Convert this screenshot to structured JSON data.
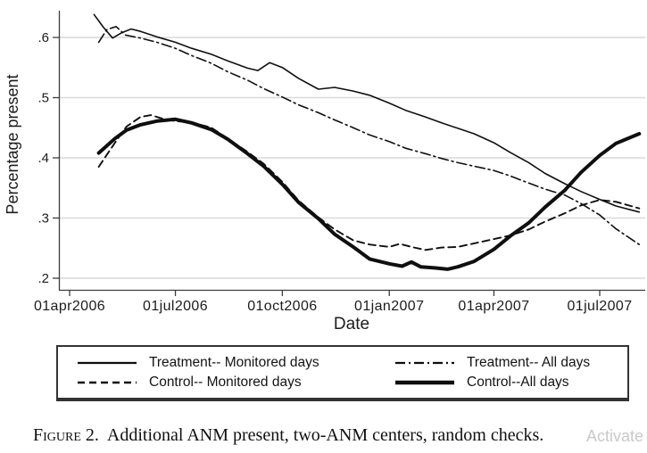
{
  "figure": {
    "caption_label": "Figure 2.",
    "caption_text": "Additional ANM present, two-ANM centers, random checks.",
    "watermark_text": "Activate"
  },
  "chart_data": {
    "type": "line",
    "title": "",
    "xlabel": "Date",
    "ylabel": "Percentage present",
    "grid": {
      "horizontal": true,
      "color": "#d9d9d9"
    },
    "line_color": "#0f0f0f",
    "legend_position": "bottom-box",
    "x_axis": {
      "min": "2006-04-01",
      "max": "2007-08-14",
      "ticks": [
        {
          "date": "2006-04-01",
          "label": "01apr2006"
        },
        {
          "date": "2006-07-01",
          "label": "01jul2006"
        },
        {
          "date": "2006-10-01",
          "label": "01oct2006"
        },
        {
          "date": "2007-01-01",
          "label": "01jan2007"
        },
        {
          "date": "2007-04-01",
          "label": "01apr2007"
        },
        {
          "date": "2007-07-01",
          "label": "01jul2007"
        }
      ]
    },
    "y_axis": {
      "min": 0.2,
      "max": 0.6,
      "ticks": [
        {
          "v": 0.6,
          "label": ".6"
        },
        {
          "v": 0.5,
          "label": ".5"
        },
        {
          "v": 0.4,
          "label": ".4"
        },
        {
          "v": 0.3,
          "label": ".3"
        },
        {
          "v": 0.2,
          "label": ".2"
        }
      ]
    },
    "series": [
      {
        "name": "Treatment-- Monitored days",
        "line_style": "solid",
        "points": [
          [
            "2006-04-22",
            0.638
          ],
          [
            "2006-04-30",
            0.617
          ],
          [
            "2006-05-08",
            0.599
          ],
          [
            "2006-05-16",
            0.608
          ],
          [
            "2006-05-24",
            0.614
          ],
          [
            "2006-06-01",
            0.61
          ],
          [
            "2006-06-15",
            0.601
          ],
          [
            "2006-07-01",
            0.592
          ],
          [
            "2006-07-15",
            0.582
          ],
          [
            "2006-08-01",
            0.572
          ],
          [
            "2006-08-15",
            0.561
          ],
          [
            "2006-09-01",
            0.549
          ],
          [
            "2006-09-10",
            0.545
          ],
          [
            "2006-09-20",
            0.558
          ],
          [
            "2006-10-01",
            0.55
          ],
          [
            "2006-10-15",
            0.532
          ],
          [
            "2006-11-01",
            0.514
          ],
          [
            "2006-11-15",
            0.517
          ],
          [
            "2006-12-01",
            0.511
          ],
          [
            "2006-12-15",
            0.504
          ],
          [
            "2007-01-01",
            0.491
          ],
          [
            "2007-01-15",
            0.479
          ],
          [
            "2007-02-01",
            0.468
          ],
          [
            "2007-02-15",
            0.458
          ],
          [
            "2007-03-01",
            0.449
          ],
          [
            "2007-03-15",
            0.44
          ],
          [
            "2007-04-01",
            0.425
          ],
          [
            "2007-04-15",
            0.409
          ],
          [
            "2007-05-01",
            0.392
          ],
          [
            "2007-05-15",
            0.374
          ],
          [
            "2007-06-01",
            0.357
          ],
          [
            "2007-06-15",
            0.344
          ],
          [
            "2007-07-01",
            0.331
          ],
          [
            "2007-07-15",
            0.32
          ],
          [
            "2007-08-04",
            0.31
          ]
        ]
      },
      {
        "name": "Treatment-- All days",
        "line_style": "dashdot",
        "points": [
          [
            "2006-04-26",
            0.592
          ],
          [
            "2006-05-03",
            0.613
          ],
          [
            "2006-05-11",
            0.618
          ],
          [
            "2006-05-19",
            0.604
          ],
          [
            "2006-06-01",
            0.599
          ],
          [
            "2006-06-15",
            0.592
          ],
          [
            "2006-07-01",
            0.582
          ],
          [
            "2006-07-15",
            0.57
          ],
          [
            "2006-08-01",
            0.557
          ],
          [
            "2006-08-15",
            0.543
          ],
          [
            "2006-09-01",
            0.529
          ],
          [
            "2006-09-15",
            0.515
          ],
          [
            "2006-10-01",
            0.501
          ],
          [
            "2006-10-15",
            0.488
          ],
          [
            "2006-11-01",
            0.475
          ],
          [
            "2006-11-15",
            0.463
          ],
          [
            "2006-12-01",
            0.45
          ],
          [
            "2006-12-15",
            0.438
          ],
          [
            "2007-01-01",
            0.427
          ],
          [
            "2007-01-15",
            0.416
          ],
          [
            "2007-02-01",
            0.407
          ],
          [
            "2007-02-15",
            0.399
          ],
          [
            "2007-03-01",
            0.392
          ],
          [
            "2007-03-15",
            0.386
          ],
          [
            "2007-04-01",
            0.379
          ],
          [
            "2007-04-15",
            0.37
          ],
          [
            "2007-05-01",
            0.358
          ],
          [
            "2007-05-15",
            0.348
          ],
          [
            "2007-06-01",
            0.338
          ],
          [
            "2007-06-15",
            0.324
          ],
          [
            "2007-07-01",
            0.305
          ],
          [
            "2007-07-15",
            0.282
          ],
          [
            "2007-08-04",
            0.256
          ]
        ]
      },
      {
        "name": "Control-- Monitored days",
        "line_style": "dashed",
        "points": [
          [
            "2006-04-26",
            0.385
          ],
          [
            "2006-05-10",
            0.425
          ],
          [
            "2006-05-20",
            0.452
          ],
          [
            "2006-06-01",
            0.468
          ],
          [
            "2006-06-10",
            0.471
          ],
          [
            "2006-06-20",
            0.465
          ],
          [
            "2006-07-01",
            0.461
          ],
          [
            "2006-07-15",
            0.459
          ],
          [
            "2006-08-01",
            0.45
          ],
          [
            "2006-08-15",
            0.432
          ],
          [
            "2006-09-01",
            0.41
          ],
          [
            "2006-09-15",
            0.39
          ],
          [
            "2006-10-01",
            0.36
          ],
          [
            "2006-10-15",
            0.329
          ],
          [
            "2006-11-01",
            0.301
          ],
          [
            "2006-11-15",
            0.281
          ],
          [
            "2006-12-01",
            0.263
          ],
          [
            "2006-12-15",
            0.256
          ],
          [
            "2007-01-01",
            0.252
          ],
          [
            "2007-01-10",
            0.257
          ],
          [
            "2007-01-20",
            0.252
          ],
          [
            "2007-02-01",
            0.247
          ],
          [
            "2007-02-15",
            0.251
          ],
          [
            "2007-03-01",
            0.252
          ],
          [
            "2007-03-15",
            0.258
          ],
          [
            "2007-04-01",
            0.265
          ],
          [
            "2007-04-15",
            0.271
          ],
          [
            "2007-05-01",
            0.281
          ],
          [
            "2007-05-15",
            0.294
          ],
          [
            "2007-06-01",
            0.308
          ],
          [
            "2007-06-15",
            0.321
          ],
          [
            "2007-07-01",
            0.33
          ],
          [
            "2007-07-15",
            0.327
          ],
          [
            "2007-08-04",
            0.316
          ]
        ]
      },
      {
        "name": "Control--All days",
        "line_style": "thick",
        "points": [
          [
            "2006-04-26",
            0.408
          ],
          [
            "2006-05-10",
            0.432
          ],
          [
            "2006-05-20",
            0.446
          ],
          [
            "2006-06-01",
            0.455
          ],
          [
            "2006-06-15",
            0.461
          ],
          [
            "2006-07-01",
            0.464
          ],
          [
            "2006-07-15",
            0.458
          ],
          [
            "2006-08-01",
            0.447
          ],
          [
            "2006-08-15",
            0.431
          ],
          [
            "2006-09-01",
            0.407
          ],
          [
            "2006-09-15",
            0.386
          ],
          [
            "2006-10-01",
            0.356
          ],
          [
            "2006-10-15",
            0.326
          ],
          [
            "2006-11-01",
            0.299
          ],
          [
            "2006-11-15",
            0.273
          ],
          [
            "2006-12-01",
            0.252
          ],
          [
            "2006-12-15",
            0.232
          ],
          [
            "2007-01-01",
            0.224
          ],
          [
            "2007-01-12",
            0.22
          ],
          [
            "2007-01-20",
            0.227
          ],
          [
            "2007-01-28",
            0.219
          ],
          [
            "2007-02-10",
            0.217
          ],
          [
            "2007-02-20",
            0.215
          ],
          [
            "2007-03-01",
            0.219
          ],
          [
            "2007-03-15",
            0.228
          ],
          [
            "2007-04-01",
            0.248
          ],
          [
            "2007-04-15",
            0.27
          ],
          [
            "2007-05-01",
            0.292
          ],
          [
            "2007-05-15",
            0.318
          ],
          [
            "2007-06-01",
            0.346
          ],
          [
            "2007-06-15",
            0.376
          ],
          [
            "2007-07-01",
            0.404
          ],
          [
            "2007-07-15",
            0.424
          ],
          [
            "2007-08-04",
            0.44
          ]
        ]
      }
    ]
  }
}
